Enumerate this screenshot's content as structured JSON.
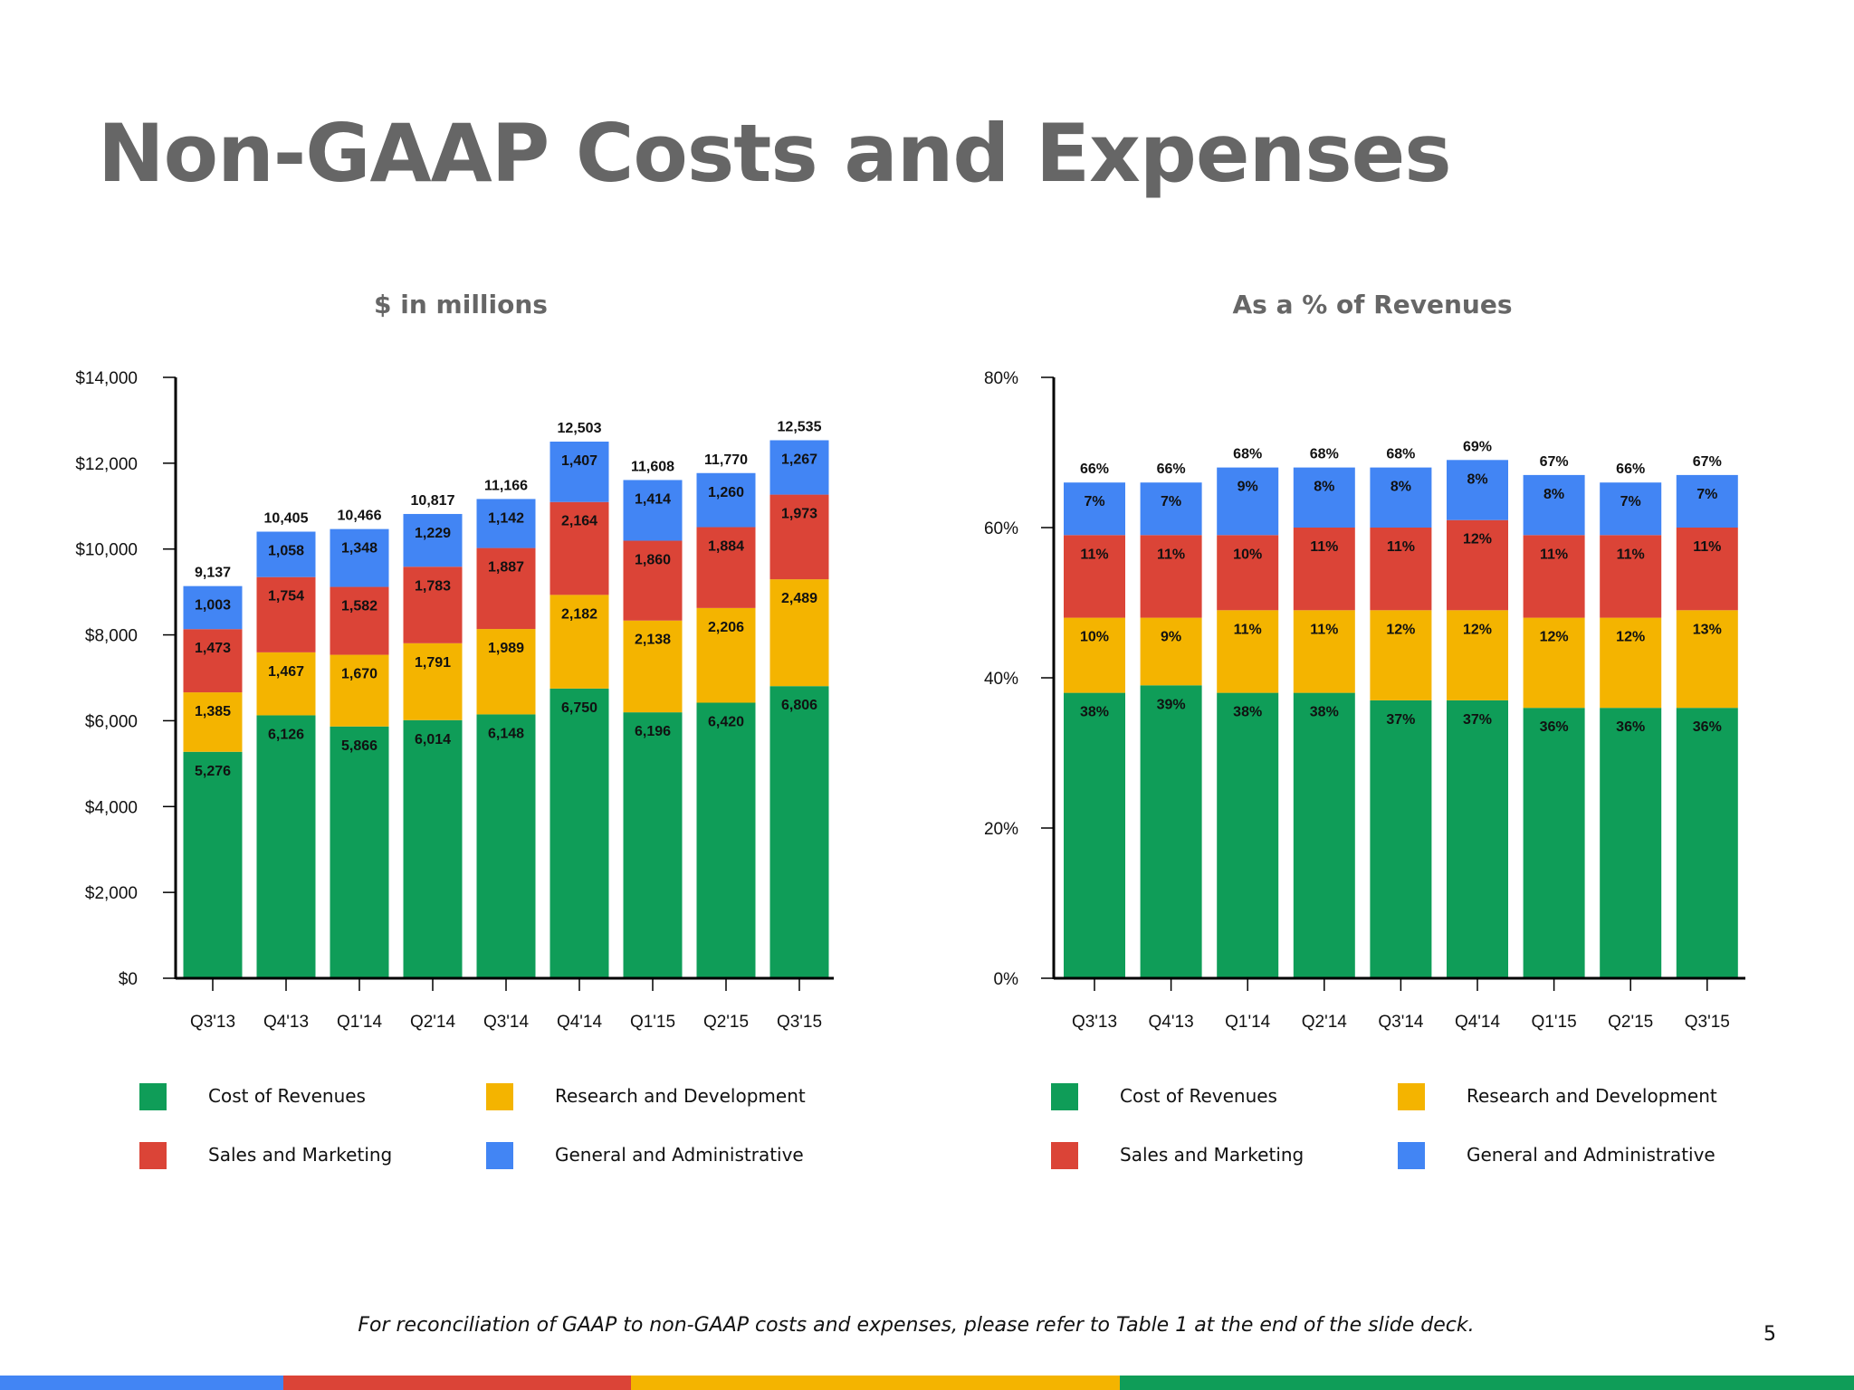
{
  "title": "Non-GAAP Costs and Expenses",
  "footnote": "For reconciliation of GAAP to non-GAAP costs and expenses, please refer to Table 1 at the end of the slide deck.",
  "page_number": "5",
  "colors": {
    "cost_of_revenues": "#0F9D58",
    "research_and_development": "#F4B400",
    "sales_and_marketing": "#DB4437",
    "general_and_administrative": "#4285F4",
    "title": "#666666"
  },
  "legend": [
    {
      "key": "cost_of_revenues",
      "label": "Cost of Revenues"
    },
    {
      "key": "research_and_development",
      "label": "Research and Development"
    },
    {
      "key": "sales_and_marketing",
      "label": "Sales and Marketing"
    },
    {
      "key": "general_and_administrative",
      "label": "General and Administrative"
    }
  ],
  "bottom_bar_colors": [
    "#4285F4",
    "#DB4437",
    "#F4B400",
    "#0F9D58"
  ],
  "chart_data": [
    {
      "type": "bar",
      "stacked": true,
      "title": "$ in millions",
      "xlabel": "",
      "ylabel": "",
      "ylim": [
        0,
        14000
      ],
      "yticks": [
        0,
        2000,
        4000,
        6000,
        8000,
        10000,
        12000,
        14000
      ],
      "ytick_labels": [
        "$0",
        "$2,000",
        "$4,000",
        "$6,000",
        "$8,000",
        "$10,000",
        "$12,000",
        "$14,000"
      ],
      "categories": [
        "Q3'13",
        "Q4'13",
        "Q1'14",
        "Q2'14",
        "Q3'14",
        "Q4'14",
        "Q1'15",
        "Q2'15",
        "Q3'15"
      ],
      "series": [
        {
          "name": "Cost of Revenues",
          "key": "cost_of_revenues",
          "values": [
            5276,
            6126,
            5866,
            6014,
            6148,
            6750,
            6196,
            6420,
            6806
          ],
          "labels": [
            "5,276",
            "6,126",
            "5,866",
            "6,014",
            "6,148",
            "6,750",
            "6,196",
            "6,420",
            "6,806"
          ]
        },
        {
          "name": "Research and Development",
          "key": "research_and_development",
          "values": [
            1385,
            1467,
            1670,
            1791,
            1989,
            2182,
            2138,
            2206,
            2489
          ],
          "labels": [
            "1,385",
            "1,467",
            "1,670",
            "1,791",
            "1,989",
            "2,182",
            "2,138",
            "2,206",
            "2,489"
          ]
        },
        {
          "name": "Sales and Marketing",
          "key": "sales_and_marketing",
          "values": [
            1473,
            1754,
            1582,
            1783,
            1887,
            2164,
            1860,
            1884,
            1973
          ],
          "labels": [
            "1,473",
            "1,754",
            "1,582",
            "1,783",
            "1,887",
            "2,164",
            "1,860",
            "1,884",
            "1,973"
          ]
        },
        {
          "name": "General and Administrative",
          "key": "general_and_administrative",
          "values": [
            1003,
            1058,
            1348,
            1229,
            1142,
            1407,
            1414,
            1260,
            1267
          ],
          "labels": [
            "1,003",
            "1,058",
            "1,348",
            "1,229",
            "1,142",
            "1,407",
            "1,414",
            "1,260",
            "1,267"
          ]
        }
      ],
      "totals": [
        9137,
        10405,
        10466,
        10817,
        11166,
        12503,
        11608,
        11770,
        12535
      ],
      "total_labels": [
        "9,137",
        "10,405",
        "10,466",
        "10,817",
        "11,166",
        "12,503",
        "11,608",
        "11,770",
        "12,535"
      ],
      "legend_position": "bottom",
      "grid": false
    },
    {
      "type": "bar",
      "stacked": true,
      "title": "As a % of Revenues",
      "xlabel": "",
      "ylabel": "",
      "ylim": [
        0,
        80
      ],
      "yticks": [
        0,
        20,
        40,
        60,
        80
      ],
      "ytick_labels": [
        "0%",
        "20%",
        "40%",
        "60%",
        "80%"
      ],
      "categories": [
        "Q3'13",
        "Q4'13",
        "Q1'14",
        "Q2'14",
        "Q3'14",
        "Q4'14",
        "Q1'15",
        "Q2'15",
        "Q3'15"
      ],
      "series": [
        {
          "name": "Cost of Revenues",
          "key": "cost_of_revenues",
          "values": [
            38,
            39,
            38,
            38,
            37,
            37,
            36,
            36,
            36
          ],
          "labels": [
            "38%",
            "39%",
            "38%",
            "38%",
            "37%",
            "37%",
            "36%",
            "36%",
            "36%"
          ]
        },
        {
          "name": "Research and Development",
          "key": "research_and_development",
          "values": [
            10,
            9,
            11,
            11,
            12,
            12,
            12,
            12,
            13
          ],
          "labels": [
            "10%",
            "9%",
            "11%",
            "11%",
            "12%",
            "12%",
            "12%",
            "12%",
            "13%"
          ]
        },
        {
          "name": "Sales and Marketing",
          "key": "sales_and_marketing",
          "values": [
            11,
            11,
            10,
            11,
            11,
            12,
            11,
            11,
            11
          ],
          "labels": [
            "11%",
            "11%",
            "10%",
            "11%",
            "11%",
            "12%",
            "11%",
            "11%",
            "11%"
          ]
        },
        {
          "name": "General and Administrative",
          "key": "general_and_administrative",
          "values": [
            7,
            7,
            9,
            8,
            8,
            8,
            8,
            7,
            7
          ],
          "labels": [
            "7%",
            "7%",
            "9%",
            "8%",
            "8%",
            "8%",
            "8%",
            "7%",
            "7%"
          ]
        }
      ],
      "totals": [
        66,
        66,
        68,
        68,
        68,
        69,
        67,
        66,
        67
      ],
      "total_labels": [
        "66%",
        "66%",
        "68%",
        "68%",
        "68%",
        "69%",
        "67%",
        "66%",
        "67%"
      ],
      "legend_position": "bottom",
      "grid": false
    }
  ]
}
